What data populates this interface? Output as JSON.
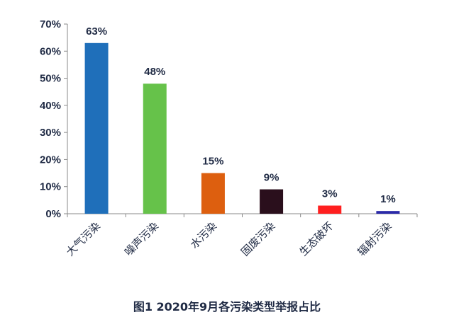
{
  "chart_data": {
    "type": "bar",
    "categories": [
      "大气污染",
      "噪声污染",
      "水污染",
      "固废污染",
      "生态破坏",
      "辐射污染"
    ],
    "values": [
      63,
      48,
      15,
      9,
      3,
      1
    ],
    "data_labels": [
      "63%",
      "48%",
      "15%",
      "9%",
      "3%",
      "1%"
    ],
    "colors": [
      "#1f6fba",
      "#66c24a",
      "#dd5f0f",
      "#2a0f1c",
      "#ff1f1f",
      "#2b2aa8"
    ],
    "ylim": [
      0,
      70
    ],
    "yticks": [
      0,
      10,
      20,
      30,
      40,
      50,
      60,
      70
    ],
    "ytick_labels": [
      "0%",
      "10%",
      "20%",
      "30%",
      "40%",
      "50%",
      "60%",
      "70%"
    ],
    "grid": false,
    "legend": "none",
    "xlabel": "",
    "ylabel": ""
  },
  "caption": "图1 2020年9月各污染类型举报占比"
}
